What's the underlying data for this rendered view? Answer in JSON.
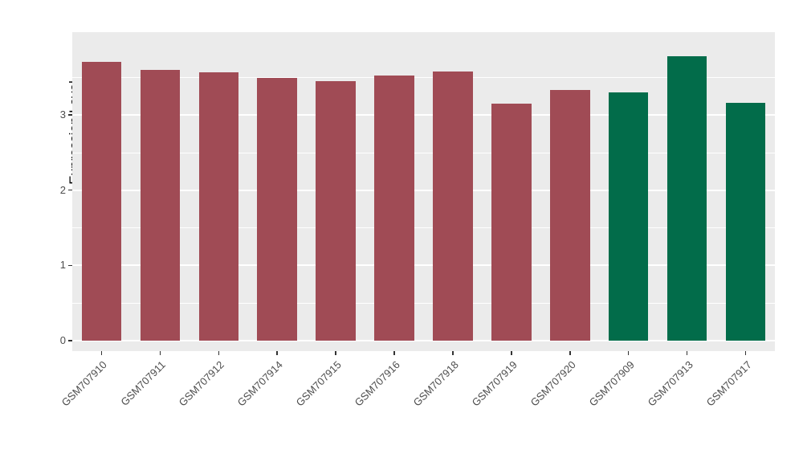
{
  "chart_data": {
    "type": "bar",
    "title": "",
    "xlabel": "",
    "ylabel": "Expression Level",
    "categories": [
      "GSM707910",
      "GSM707911",
      "GSM707912",
      "GSM707914",
      "GSM707915",
      "GSM707916",
      "GSM707918",
      "GSM707919",
      "GSM707920",
      "GSM707909",
      "GSM707913",
      "GSM707917"
    ],
    "values": [
      3.7,
      3.6,
      3.56,
      3.49,
      3.45,
      3.52,
      3.57,
      3.15,
      3.33,
      3.3,
      3.78,
      3.16
    ],
    "bar_colors": [
      "#A04B55",
      "#A04B55",
      "#A04B55",
      "#A04B55",
      "#A04B55",
      "#A04B55",
      "#A04B55",
      "#A04B55",
      "#A04B55",
      "#026C4A",
      "#026C4A",
      "#026C4A"
    ],
    "yticks": [
      0,
      1,
      2,
      3
    ],
    "minor_ticks": [
      0.5,
      1.5,
      2.5,
      3.5
    ],
    "ylim": [
      0,
      4.1
    ],
    "grid": "on",
    "legend": "none",
    "panel_bg": "#EBEBEB",
    "grid_color": "#FFFFFF",
    "figure_bg": "#FFFFFF"
  }
}
